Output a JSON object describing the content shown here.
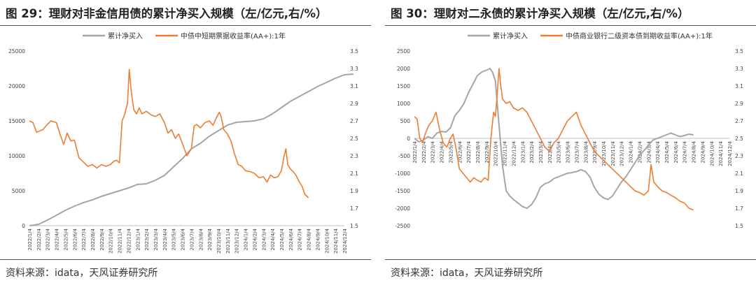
{
  "charts": [
    {
      "title": "图 29：理财对非金信用债的累计净买入规模（左/亿元,右/%）",
      "source": "资料来源：idata，天风证券研究所",
      "chart_data": {
        "type": "line",
        "legend_position": "top",
        "series": [
          {
            "name": "累计净买入",
            "axis": "left",
            "color": "#a5a5a5"
          },
          {
            "name": "中债中短期票据收益率(AA+):1年",
            "axis": "right",
            "color": "#ed7d31"
          }
        ],
        "y_left": {
          "range": [
            0,
            25000
          ],
          "ticks": [
            0,
            5000,
            10000,
            15000,
            20000,
            25000
          ]
        },
        "y_right": {
          "range": [
            1.5,
            3.5
          ],
          "ticks": [
            "1.5",
            "1.7",
            "1.9",
            "2.1",
            "2.3",
            "2.5",
            "2.7",
            "2.9",
            "3.1",
            "3.3",
            "3.5"
          ]
        },
        "x_ticks": [
          "2022/1/4",
          "2022/2/4",
          "2022/3/4",
          "2022/4/4",
          "2022/5/4",
          "2022/6/4",
          "2022/7/4",
          "2022/8/4",
          "2022/9/4",
          "2022/10/4",
          "2022/11/4",
          "2022/12/4",
          "2023/1/4",
          "2023/2/4",
          "2023/3/4",
          "2023/4/4",
          "2023/5/4",
          "2023/6/4",
          "2023/7/4",
          "2023/8/4",
          "2023/9/4",
          "2023/10/4",
          "2023/11/4",
          "2023/12/4",
          "2024/1/4",
          "2024/2/4",
          "2024/3/4",
          "2024/4/4",
          "2024/5/4",
          "2024/6/4",
          "2024/7/4",
          "2024/8/4",
          "2024/9/4",
          "2024/10/4",
          "2024/11/4",
          "2024/12/4"
        ],
        "gray_points": [
          [
            0,
            0
          ],
          [
            1,
            200
          ],
          [
            2,
            800
          ],
          [
            3,
            1500
          ],
          [
            4,
            2200
          ],
          [
            5,
            2800
          ],
          [
            6,
            3300
          ],
          [
            7,
            3700
          ],
          [
            8,
            4200
          ],
          [
            9,
            4600
          ],
          [
            10,
            5000
          ],
          [
            11,
            5400
          ],
          [
            12,
            5900
          ],
          [
            13,
            6000
          ],
          [
            14,
            6500
          ],
          [
            15,
            7200
          ],
          [
            16,
            8400
          ],
          [
            17,
            9600
          ],
          [
            18,
            11000
          ],
          [
            19,
            11800
          ],
          [
            20,
            12800
          ],
          [
            21,
            13600
          ],
          [
            22,
            14400
          ],
          [
            23,
            14800
          ],
          [
            24,
            14900
          ],
          [
            25,
            15000
          ],
          [
            26,
            15300
          ],
          [
            27,
            16000
          ],
          [
            28,
            16900
          ],
          [
            29,
            17800
          ],
          [
            30,
            18500
          ],
          [
            31,
            19200
          ],
          [
            32,
            19900
          ],
          [
            33,
            20500
          ],
          [
            34,
            21100
          ],
          [
            35,
            21600
          ],
          [
            36,
            21700
          ]
        ],
        "orange_points": [
          [
            0,
            2.7
          ],
          [
            0.4,
            2.68
          ],
          [
            0.8,
            2.57
          ],
          [
            1.5,
            2.6
          ],
          [
            2,
            2.66
          ],
          [
            2.4,
            2.7
          ],
          [
            3,
            2.68
          ],
          [
            3.4,
            2.55
          ],
          [
            3.8,
            2.43
          ],
          [
            4.2,
            2.56
          ],
          [
            4.6,
            2.47
          ],
          [
            5,
            2.48
          ],
          [
            5.5,
            2.28
          ],
          [
            6,
            2.23
          ],
          [
            6.5,
            2.18
          ],
          [
            7,
            2.2
          ],
          [
            7.5,
            2.16
          ],
          [
            8,
            2.2
          ],
          [
            8.5,
            2.18
          ],
          [
            9,
            2.2
          ],
          [
            9.4,
            2.24
          ],
          [
            9.7,
            2.25
          ],
          [
            10,
            2.22
          ],
          [
            10.3,
            2.7
          ],
          [
            10.6,
            2.78
          ],
          [
            10.9,
            2.9
          ],
          [
            11.1,
            3.29
          ],
          [
            11.3,
            3.05
          ],
          [
            11.6,
            2.83
          ],
          [
            11.9,
            2.78
          ],
          [
            12.2,
            2.85
          ],
          [
            12.5,
            2.78
          ],
          [
            13,
            2.81
          ],
          [
            13.5,
            2.77
          ],
          [
            14,
            2.75
          ],
          [
            14.5,
            2.78
          ],
          [
            15,
            2.68
          ],
          [
            15.4,
            2.56
          ],
          [
            15.8,
            2.6
          ],
          [
            16.2,
            2.5
          ],
          [
            16.6,
            2.55
          ],
          [
            17,
            2.44
          ],
          [
            17.5,
            2.3
          ],
          [
            18,
            2.38
          ],
          [
            18.3,
            2.64
          ],
          [
            18.6,
            2.66
          ],
          [
            19,
            2.62
          ],
          [
            19.5,
            2.68
          ],
          [
            20,
            2.7
          ],
          [
            20.4,
            2.65
          ],
          [
            20.8,
            2.74
          ],
          [
            21.1,
            2.8
          ],
          [
            21.3,
            2.75
          ],
          [
            21.6,
            2.6
          ],
          [
            22,
            2.55
          ],
          [
            22.4,
            2.47
          ],
          [
            22.8,
            2.32
          ],
          [
            23.2,
            2.2
          ],
          [
            23.6,
            2.18
          ],
          [
            24,
            2.13
          ],
          [
            24.5,
            2.12
          ],
          [
            25,
            2.1
          ],
          [
            25.5,
            2.05
          ],
          [
            26,
            2.06
          ],
          [
            26.4,
            2.0
          ],
          [
            26.8,
            2.08
          ],
          [
            27.2,
            2.05
          ],
          [
            27.6,
            2.06
          ],
          [
            28,
            2.13
          ],
          [
            28.3,
            2.3
          ],
          [
            28.5,
            2.38
          ],
          [
            28.7,
            2.2
          ],
          [
            29,
            2.15
          ],
          [
            29.3,
            2.12
          ],
          [
            29.6,
            2.08
          ],
          [
            30,
            2.0
          ],
          [
            30.3,
            1.95
          ],
          [
            30.6,
            1.86
          ],
          [
            31,
            1.82
          ]
        ]
      }
    },
    {
      "title": "图 30：理财对二永债的累计净买入规模（左/亿元,右/%）",
      "source": "资料来源：idata，天风证券研究所",
      "chart_data": {
        "type": "line",
        "legend_position": "top",
        "series": [
          {
            "name": "累计净买入",
            "axis": "left",
            "color": "#a5a5a5"
          },
          {
            "name": "中债商业银行二级资本债到期收益率(AA+):1年",
            "axis": "right",
            "color": "#ed7d31"
          }
        ],
        "y_left": {
          "range": [
            -2500,
            2500
          ],
          "ticks": [
            -2500,
            -2000,
            -1500,
            -1000,
            -500,
            0,
            500,
            1000,
            1500,
            2000,
            2500
          ]
        },
        "y_right": {
          "range": [
            1.5,
            3.5
          ],
          "ticks": [
            "1.5",
            "1.7",
            "1.9",
            "2.1",
            "2.3",
            "2.5",
            "2.7",
            "2.9",
            "3.1",
            "3.3",
            "3.5"
          ]
        },
        "x_ticks": [
          "2022/1/4",
          "2022/2/4",
          "2022/3/4",
          "2022/4/4",
          "2022/5/4",
          "2022/6/4",
          "2022/7/4",
          "2022/8/4",
          "2022/9/4",
          "2022/10/4",
          "2022/11/4",
          "2022/12/4",
          "2023/1/4",
          "2023/2/4",
          "2023/3/4",
          "2023/4/4",
          "2023/5/4",
          "2023/6/4",
          "2023/7/4",
          "2023/8/4",
          "2023/9/4",
          "2023/10/4",
          "2023/11/4",
          "2023/12/4",
          "2024/1/4",
          "2024/2/4",
          "2024/3/4",
          "2024/4/4",
          "2024/5/4",
          "2024/6/4",
          "2024/7/4",
          "2024/8/4",
          "2024/9/4",
          "2024/10/4",
          "2024/11/4",
          "2024/12/4"
        ],
        "gray_points": [
          [
            0,
            0
          ],
          [
            0.5,
            -100
          ],
          [
            1,
            -50
          ],
          [
            1.5,
            50
          ],
          [
            2,
            0
          ],
          [
            2.5,
            150
          ],
          [
            3,
            200
          ],
          [
            3.5,
            180
          ],
          [
            4,
            300
          ],
          [
            4.5,
            650
          ],
          [
            5,
            800
          ],
          [
            5.5,
            1000
          ],
          [
            6,
            1300
          ],
          [
            6.5,
            1550
          ],
          [
            7,
            1800
          ],
          [
            7.5,
            1900
          ],
          [
            8,
            1950
          ],
          [
            8.4,
            2000
          ],
          [
            8.7,
            1880
          ],
          [
            9,
            1650
          ],
          [
            9.2,
            1000
          ],
          [
            9.5,
            100
          ],
          [
            9.8,
            -800
          ],
          [
            10.2,
            -1500
          ],
          [
            10.6,
            -1650
          ],
          [
            11,
            -1750
          ],
          [
            11.5,
            -1850
          ],
          [
            12,
            -1950
          ],
          [
            12.5,
            -2000
          ],
          [
            13,
            -1900
          ],
          [
            13.5,
            -1700
          ],
          [
            14,
            -1400
          ],
          [
            14.5,
            -1300
          ],
          [
            15,
            -1250
          ],
          [
            15.5,
            -1150
          ],
          [
            16,
            -1100
          ],
          [
            16.5,
            -1050
          ],
          [
            17,
            -1000
          ],
          [
            17.5,
            -980
          ],
          [
            18,
            -950
          ],
          [
            18.5,
            -900
          ],
          [
            19,
            -950
          ],
          [
            19.5,
            -1100
          ],
          [
            20,
            -1400
          ],
          [
            20.5,
            -1600
          ],
          [
            21,
            -1700
          ],
          [
            21.5,
            -1750
          ],
          [
            22,
            -1650
          ],
          [
            22.5,
            -1450
          ],
          [
            23,
            -1250
          ],
          [
            23.5,
            -1100
          ],
          [
            24,
            -900
          ],
          [
            24.5,
            -700
          ],
          [
            25,
            -500
          ],
          [
            25.5,
            -350
          ],
          [
            26,
            -200
          ],
          [
            26.5,
            -50
          ],
          [
            27,
            0
          ],
          [
            27.5,
            50
          ],
          [
            28,
            100
          ],
          [
            28.5,
            150
          ],
          [
            29,
            100
          ],
          [
            29.5,
            50
          ],
          [
            30,
            80
          ],
          [
            30.5,
            120
          ],
          [
            31,
            100
          ]
        ],
        "orange_points": [
          [
            0,
            2.75
          ],
          [
            0.3,
            2.72
          ],
          [
            0.6,
            2.5
          ],
          [
            0.9,
            2.45
          ],
          [
            1.2,
            2.55
          ],
          [
            1.6,
            2.65
          ],
          [
            2,
            2.7
          ],
          [
            2.4,
            2.8
          ],
          [
            2.8,
            2.6
          ],
          [
            3.2,
            2.45
          ],
          [
            3.6,
            2.4
          ],
          [
            4,
            2.5
          ],
          [
            4.3,
            2.55
          ],
          [
            4.6,
            2.4
          ],
          [
            5,
            2.15
          ],
          [
            5.4,
            2.1
          ],
          [
            5.8,
            2.05
          ],
          [
            6.2,
            2.0
          ],
          [
            6.6,
            2.05
          ],
          [
            7,
            2.02
          ],
          [
            7.4,
            2.0
          ],
          [
            7.8,
            2.05
          ],
          [
            8.2,
            2.02
          ],
          [
            8.5,
            2.5
          ],
          [
            8.8,
            2.8
          ],
          [
            9,
            2.75
          ],
          [
            9.2,
            3.0
          ],
          [
            9.4,
            3.3
          ],
          [
            9.6,
            3.1
          ],
          [
            9.8,
            2.95
          ],
          [
            10.2,
            2.9
          ],
          [
            10.6,
            2.92
          ],
          [
            11,
            2.85
          ],
          [
            11.5,
            2.82
          ],
          [
            12,
            2.85
          ],
          [
            12.5,
            2.8
          ],
          [
            13,
            2.7
          ],
          [
            13.5,
            2.6
          ],
          [
            14,
            2.5
          ],
          [
            14.5,
            2.4
          ],
          [
            15,
            2.35
          ],
          [
            15.5,
            2.45
          ],
          [
            16,
            2.5
          ],
          [
            16.5,
            2.6
          ],
          [
            17,
            2.7
          ],
          [
            17.5,
            2.75
          ],
          [
            18,
            2.8
          ],
          [
            18.5,
            2.65
          ],
          [
            19,
            2.55
          ],
          [
            19.5,
            2.45
          ],
          [
            20,
            2.35
          ],
          [
            20.5,
            2.3
          ],
          [
            21,
            2.25
          ],
          [
            21.5,
            2.2
          ],
          [
            22,
            2.15
          ],
          [
            22.5,
            2.1
          ],
          [
            23,
            2.05
          ],
          [
            23.5,
            2.0
          ],
          [
            24,
            1.95
          ],
          [
            24.5,
            1.9
          ],
          [
            25,
            1.88
          ],
          [
            25.5,
            1.85
          ],
          [
            26,
            1.9
          ],
          [
            26.3,
            2.2
          ],
          [
            26.6,
            2.0
          ],
          [
            27,
            1.95
          ],
          [
            27.5,
            1.9
          ],
          [
            28,
            1.88
          ],
          [
            28.5,
            1.85
          ],
          [
            29,
            1.82
          ],
          [
            29.5,
            1.78
          ],
          [
            30,
            1.76
          ],
          [
            30.5,
            1.7
          ],
          [
            31,
            1.68
          ]
        ]
      }
    }
  ]
}
